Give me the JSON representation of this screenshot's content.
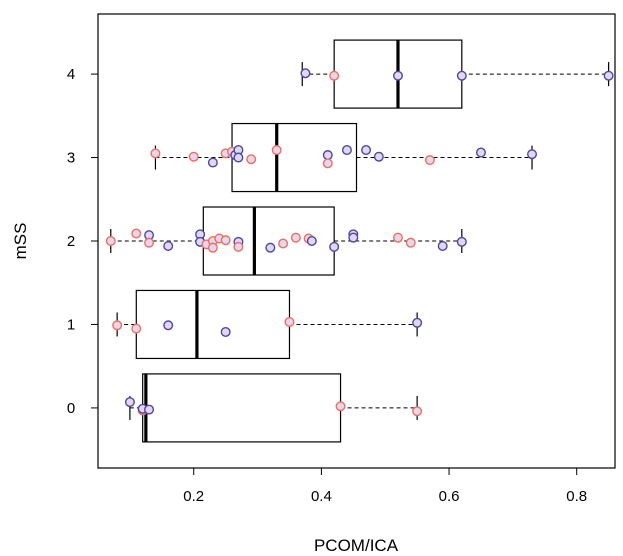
{
  "chart_data": {
    "type": "box",
    "orientation": "horizontal",
    "xlabel": "PCOM/ICA",
    "ylabel": "mSS",
    "xlim": [
      0.05,
      0.86
    ],
    "ylim": [
      -0.72,
      4.72
    ],
    "xticks": [
      0.2,
      0.4,
      0.6,
      0.8
    ],
    "yticks": [
      0,
      1,
      2,
      3,
      4
    ],
    "x_tick_labels": [
      "0.2",
      "0.4",
      "0.6",
      "0.8"
    ],
    "y_tick_labels": [
      "0",
      "1",
      "2",
      "3",
      "4"
    ],
    "colors": {
      "red_points": "#f26d5b",
      "blue_points": "#4b47a0",
      "point_fill": "#e3d6f0",
      "box": "#000000"
    },
    "boxes": [
      {
        "group": "0",
        "min": 0.1,
        "q1": 0.12,
        "median": 0.125,
        "q3": 0.43,
        "max": 0.55
      },
      {
        "group": "1",
        "min": 0.08,
        "q1": 0.11,
        "median": 0.205,
        "q3": 0.35,
        "max": 0.55
      },
      {
        "group": "2",
        "min": 0.07,
        "q1": 0.215,
        "median": 0.295,
        "q3": 0.42,
        "max": 0.62
      },
      {
        "group": "3",
        "min": 0.14,
        "q1": 0.26,
        "median": 0.33,
        "q3": 0.455,
        "max": 0.73
      },
      {
        "group": "4",
        "min": 0.37,
        "q1": 0.42,
        "median": 0.52,
        "q3": 0.62,
        "max": 0.85
      }
    ],
    "points": [
      {
        "x": 0.1,
        "y": 0.07,
        "color": "blue"
      },
      {
        "x": 0.12,
        "y": -0.03,
        "color": "red"
      },
      {
        "x": 0.12,
        "y": -0.01,
        "color": "blue"
      },
      {
        "x": 0.13,
        "y": -0.02,
        "color": "blue"
      },
      {
        "x": 0.43,
        "y": 0.02,
        "color": "red"
      },
      {
        "x": 0.55,
        "y": -0.04,
        "color": "red"
      },
      {
        "x": 0.08,
        "y": 0.99,
        "color": "red"
      },
      {
        "x": 0.11,
        "y": 0.95,
        "color": "red"
      },
      {
        "x": 0.16,
        "y": 0.99,
        "color": "blue"
      },
      {
        "x": 0.25,
        "y": 0.91,
        "color": "blue"
      },
      {
        "x": 0.35,
        "y": 1.03,
        "color": "red"
      },
      {
        "x": 0.55,
        "y": 1.02,
        "color": "blue"
      },
      {
        "x": 0.07,
        "y": 2.0,
        "color": "red"
      },
      {
        "x": 0.11,
        "y": 2.09,
        "color": "red"
      },
      {
        "x": 0.13,
        "y": 2.07,
        "color": "blue"
      },
      {
        "x": 0.13,
        "y": 1.98,
        "color": "red"
      },
      {
        "x": 0.16,
        "y": 1.94,
        "color": "blue"
      },
      {
        "x": 0.21,
        "y": 2.08,
        "color": "blue"
      },
      {
        "x": 0.21,
        "y": 1.99,
        "color": "blue"
      },
      {
        "x": 0.22,
        "y": 1.96,
        "color": "red"
      },
      {
        "x": 0.23,
        "y": 2.0,
        "color": "red"
      },
      {
        "x": 0.23,
        "y": 1.92,
        "color": "red"
      },
      {
        "x": 0.24,
        "y": 2.03,
        "color": "red"
      },
      {
        "x": 0.25,
        "y": 2.01,
        "color": "red"
      },
      {
        "x": 0.27,
        "y": 1.99,
        "color": "blue"
      },
      {
        "x": 0.27,
        "y": 1.93,
        "color": "red"
      },
      {
        "x": 0.32,
        "y": 1.92,
        "color": "blue"
      },
      {
        "x": 0.34,
        "y": 1.97,
        "color": "red"
      },
      {
        "x": 0.36,
        "y": 2.04,
        "color": "red"
      },
      {
        "x": 0.38,
        "y": 2.03,
        "color": "red"
      },
      {
        "x": 0.385,
        "y": 2.0,
        "color": "blue"
      },
      {
        "x": 0.42,
        "y": 1.93,
        "color": "blue"
      },
      {
        "x": 0.45,
        "y": 2.08,
        "color": "blue"
      },
      {
        "x": 0.45,
        "y": 2.04,
        "color": "blue"
      },
      {
        "x": 0.52,
        "y": 2.04,
        "color": "red"
      },
      {
        "x": 0.54,
        "y": 1.98,
        "color": "red"
      },
      {
        "x": 0.59,
        "y": 1.94,
        "color": "blue"
      },
      {
        "x": 0.62,
        "y": 1.99,
        "color": "blue"
      },
      {
        "x": 0.14,
        "y": 3.05,
        "color": "red"
      },
      {
        "x": 0.2,
        "y": 3.01,
        "color": "red"
      },
      {
        "x": 0.23,
        "y": 2.94,
        "color": "blue"
      },
      {
        "x": 0.25,
        "y": 3.05,
        "color": "red"
      },
      {
        "x": 0.26,
        "y": 3.07,
        "color": "red"
      },
      {
        "x": 0.265,
        "y": 3.03,
        "color": "blue"
      },
      {
        "x": 0.27,
        "y": 3.09,
        "color": "blue"
      },
      {
        "x": 0.27,
        "y": 3.0,
        "color": "blue"
      },
      {
        "x": 0.29,
        "y": 2.98,
        "color": "red"
      },
      {
        "x": 0.33,
        "y": 3.09,
        "color": "red"
      },
      {
        "x": 0.41,
        "y": 3.03,
        "color": "blue"
      },
      {
        "x": 0.41,
        "y": 2.93,
        "color": "red"
      },
      {
        "x": 0.44,
        "y": 3.09,
        "color": "blue"
      },
      {
        "x": 0.47,
        "y": 3.09,
        "color": "blue"
      },
      {
        "x": 0.49,
        "y": 3.01,
        "color": "blue"
      },
      {
        "x": 0.57,
        "y": 2.97,
        "color": "red"
      },
      {
        "x": 0.65,
        "y": 3.06,
        "color": "blue"
      },
      {
        "x": 0.73,
        "y": 3.04,
        "color": "blue"
      },
      {
        "x": 0.375,
        "y": 4.01,
        "color": "blue"
      },
      {
        "x": 0.42,
        "y": 3.98,
        "color": "red"
      },
      {
        "x": 0.52,
        "y": 3.98,
        "color": "blue"
      },
      {
        "x": 0.62,
        "y": 3.98,
        "color": "blue"
      },
      {
        "x": 0.85,
        "y": 3.98,
        "color": "blue"
      }
    ]
  }
}
